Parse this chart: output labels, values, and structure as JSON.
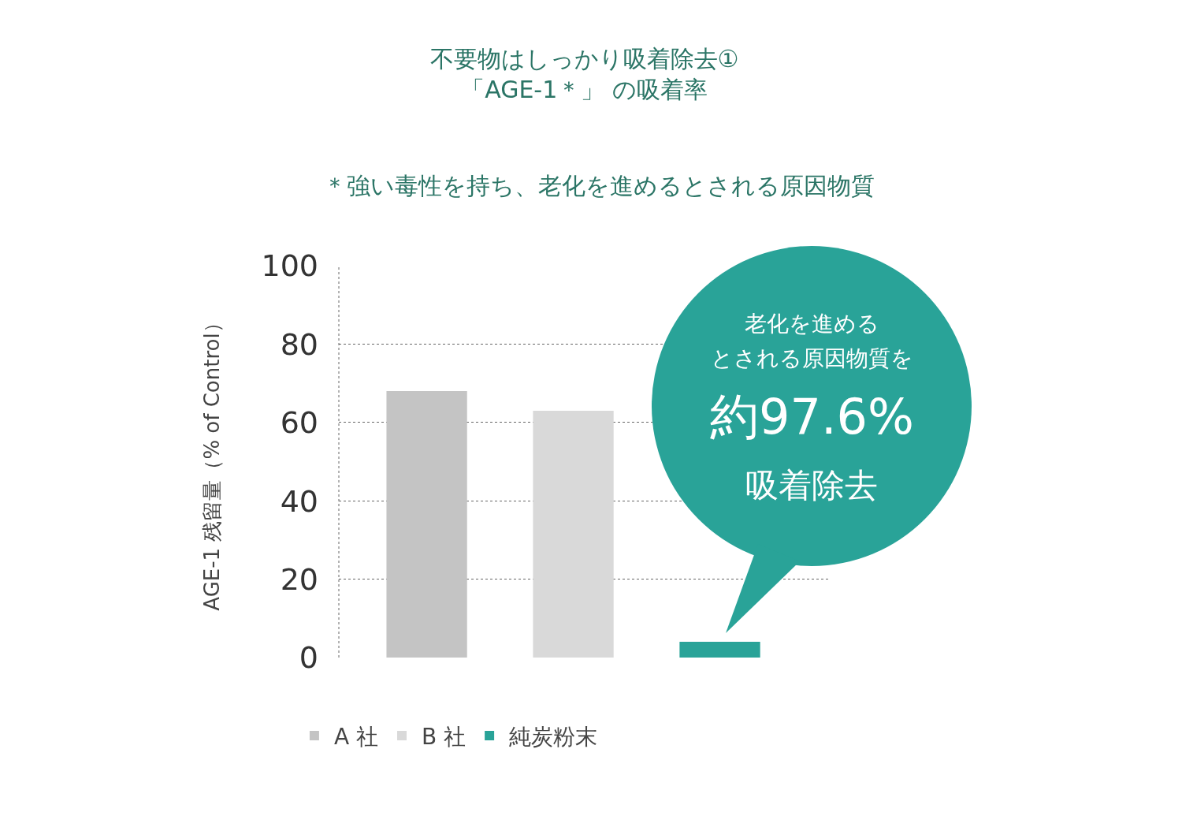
{
  "chart_data": {
    "type": "bar",
    "title": "不要物はしっかり吸着除去①\n「AGE-1＊」 の吸着率",
    "subtitle": "＊強い毒性を持ち、老化を進めるとされる原因物質",
    "ylabel": "AGE-1 残留量（% of Control）",
    "categories": [
      null,
      null,
      null
    ],
    "series": [
      {
        "name": "A 社",
        "color": "#c4c4c4",
        "values": [
          68,
          null,
          null
        ]
      },
      {
        "name": "B 社",
        "color": "#d9d9d9",
        "values": [
          null,
          63,
          null
        ]
      },
      {
        "name": "純炭粉末",
        "color": "#29a398",
        "values": [
          null,
          null,
          4
        ]
      }
    ],
    "ylim": [
      0,
      100
    ],
    "yticks": [
      0,
      20,
      40,
      60,
      80,
      100
    ],
    "grid": "y",
    "legend": "bottom",
    "tick_labels": "y",
    "annotations": [
      "老化を進める",
      "とされる原因物質を",
      "約97.6%",
      "吸着除去"
    ]
  }
}
